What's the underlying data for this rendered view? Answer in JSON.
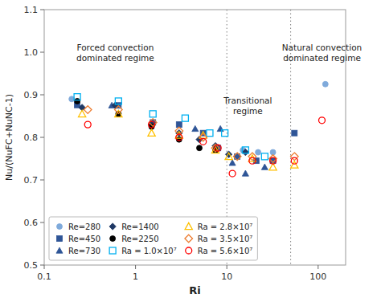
{
  "chart_data": {
    "type": "scatter",
    "xlabel": "Ri",
    "ylabel": "Nu/(NuFC+NuNC-1)",
    "log": "x",
    "grid": false,
    "legend": "lower left",
    "xlim": [
      0.1,
      200
    ],
    "ylim": [
      0.5,
      1.1
    ],
    "xticks": [
      0.1,
      1,
      10,
      100
    ],
    "yticks": [
      0.5,
      0.6,
      0.7,
      0.8,
      0.9,
      {
        "value": 1.0,
        "label": "1.0"
      },
      1.1
    ],
    "vlines": [
      10,
      50
    ],
    "series": [
      {
        "name": "Re=280",
        "color": "#7faadb",
        "marker": "circle",
        "x": [
          0.2,
          15,
          22,
          32,
          120
        ],
        "values": [
          0.89,
          0.77,
          0.765,
          0.765,
          0.925
        ]
      },
      {
        "name": "Re=450",
        "color": "#2f5597",
        "marker": "square",
        "x": [
          0.23,
          0.65,
          1.55,
          3.0,
          5.5,
          8.0,
          13,
          21,
          32,
          55
        ],
        "values": [
          0.876,
          0.875,
          0.835,
          0.83,
          0.81,
          0.775,
          0.755,
          0.745,
          0.745,
          0.81
        ]
      },
      {
        "name": "Re=730",
        "color": "#2f5597",
        "marker": "triangle",
        "x": [
          0.55,
          4.5,
          8.5,
          11.5,
          16,
          26
        ],
        "values": [
          0.875,
          0.82,
          0.82,
          0.74,
          0.715,
          0.73
        ]
      },
      {
        "name": "Re=1400",
        "color": "#1f3864",
        "marker": "diamond",
        "x": [
          0.26,
          0.6,
          1.5,
          3.0,
          5.0,
          7.5,
          10.5,
          16
        ],
        "values": [
          0.87,
          0.875,
          0.83,
          0.81,
          0.795,
          0.78,
          0.76,
          0.765
        ]
      },
      {
        "name": "Re=2250",
        "color": "#000000",
        "marker": "circle",
        "x": [
          0.23,
          0.65,
          1.5,
          3.0,
          5.0,
          7.5
        ],
        "values": [
          0.885,
          0.855,
          0.825,
          0.795,
          0.775,
          0.77
        ]
      },
      {
        "name": "Ra = 1.0×10⁷",
        "color": "#00b0f0",
        "marker": "square-open",
        "x": [
          0.23,
          0.65,
          1.55,
          3.5,
          6.5,
          9.5,
          16,
          26
        ],
        "values": [
          0.895,
          0.885,
          0.855,
          0.845,
          0.81,
          0.81,
          0.77,
          0.755
        ]
      },
      {
        "name": "Ra = 2.8×10⁷",
        "color": "#ffc000",
        "marker": "triangle-open",
        "x": [
          0.26,
          0.65,
          1.5,
          3.0,
          5.5,
          7.5,
          10.5,
          19,
          32,
          55
        ],
        "values": [
          0.855,
          0.855,
          0.81,
          0.805,
          0.805,
          0.77,
          0.755,
          0.75,
          0.73,
          0.735
        ]
      },
      {
        "name": "Ra = 3.5×10⁷",
        "color": "#ed7d31",
        "marker": "diamond-open",
        "x": [
          0.3,
          0.65,
          1.55,
          3.0,
          5.5,
          7.5,
          13,
          19,
          32,
          55
        ],
        "values": [
          0.865,
          0.865,
          0.835,
          0.815,
          0.8,
          0.775,
          0.755,
          0.755,
          0.75,
          0.755
        ]
      },
      {
        "name": "Ra = 5.6×10⁷",
        "color": "#ff0000",
        "marker": "circle-open",
        "x": [
          0.3,
          1.5,
          3.0,
          5.5,
          8.0,
          11.5,
          19,
          32,
          55,
          110
        ],
        "values": [
          0.83,
          0.83,
          0.8,
          0.79,
          0.775,
          0.715,
          0.745,
          0.745,
          0.745,
          0.84
        ]
      }
    ],
    "annotations": [
      {
        "text": "Forced convection\ndominated regime",
        "x": 0.6,
        "y": 1.0
      },
      {
        "text": "Transitional\nregime",
        "x": 17.0,
        "y": 0.875
      },
      {
        "text": "Natural convection\ndominated regime",
        "x": 110.0,
        "y": 1.0
      }
    ]
  }
}
